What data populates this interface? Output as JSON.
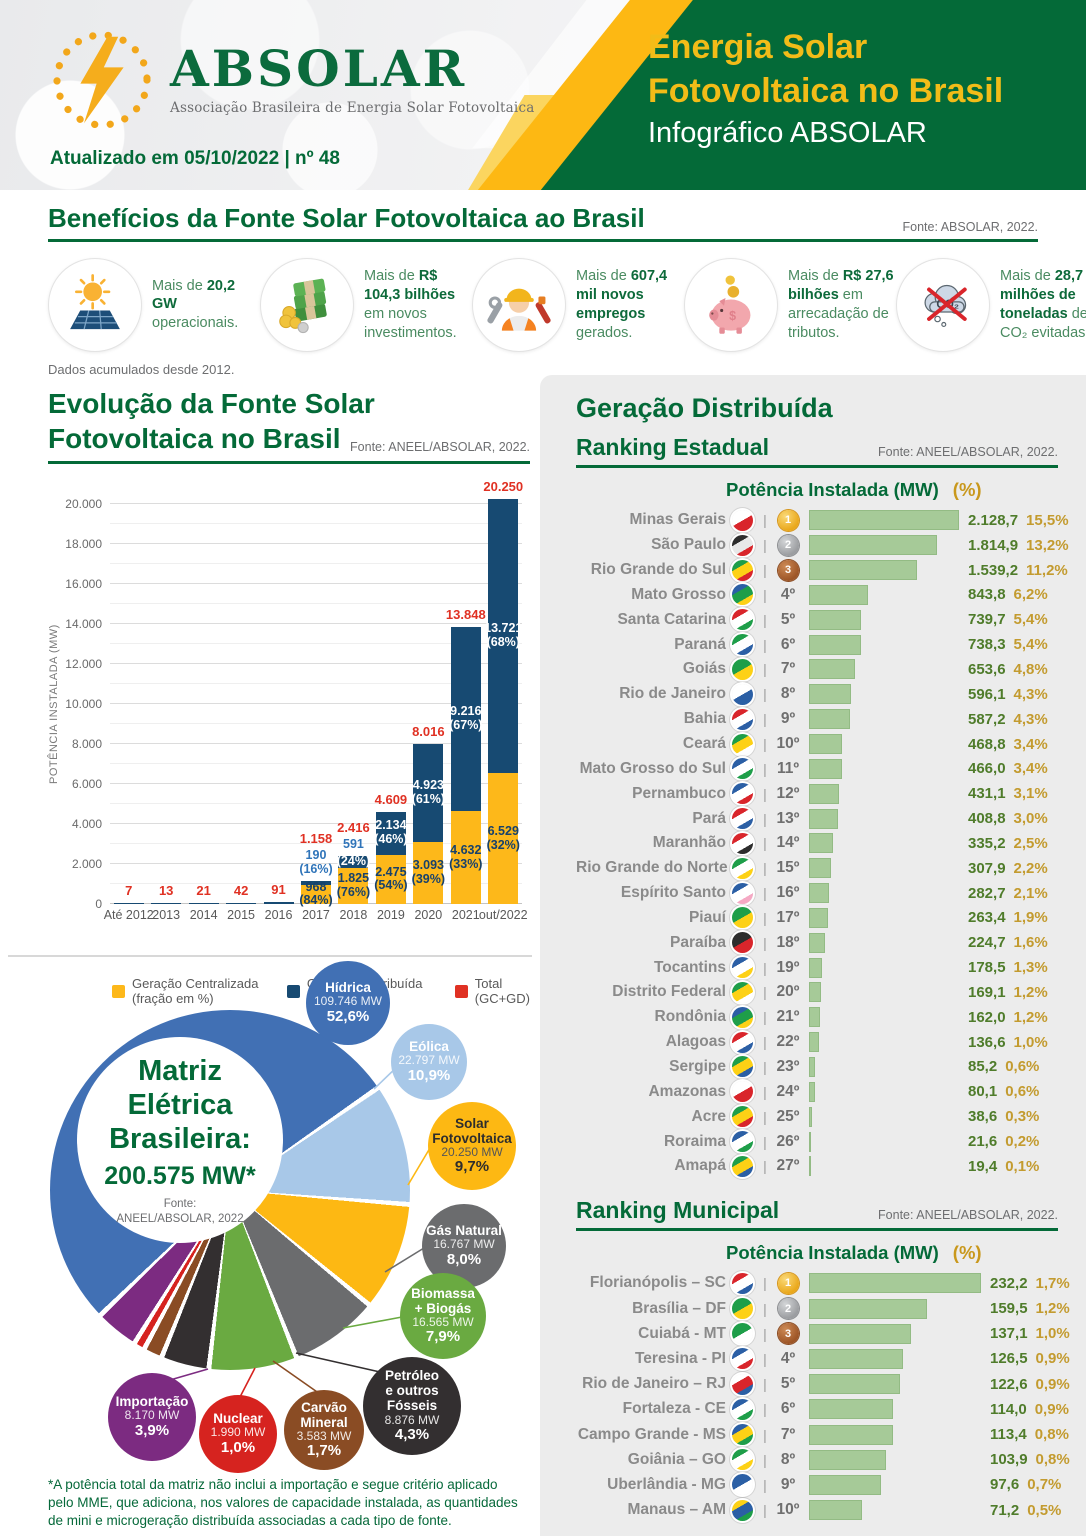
{
  "header": {
    "logo_text": "ABSOLAR",
    "logo_tagline": "Associação Brasileira de Energia Solar Fotovoltaica",
    "updated": "Atualizado em 05/10/2022 | nº 48",
    "title_line1": "Energia Solar",
    "title_line2": "Fotovoltaica no Brasil",
    "subtitle": "Infográfico ABSOLAR",
    "brand_green": "#046a38",
    "brand_yellow": "#fdb813"
  },
  "benefits": {
    "title": "Benefícios da Fonte Solar Fotovoltaica ao Brasil",
    "source": "Fonte: ABSOLAR, 2022.",
    "note": "Dados acumulados desde 2012.",
    "items": [
      {
        "icon": "solar-panel-icon",
        "text": "Mais de **20,2 GW** operacionais."
      },
      {
        "icon": "money-icon",
        "text": "Mais de **R$ 104,3 bilhões** em novos investimentos."
      },
      {
        "icon": "worker-icon",
        "text": "Mais de **607,4 mil novos empregos** gerados."
      },
      {
        "icon": "piggy-bank-icon",
        "text": "Mais de **R$ 27,6 bilhões** em arrecadação de tributos."
      },
      {
        "icon": "co2-icon",
        "text": "Mais de **28,7 milhões de toneladas** de CO₂ evitadas."
      }
    ]
  },
  "chart_data": [
    {
      "id": "evolution",
      "type": "bar",
      "stacked": true,
      "title": "Evolução da Fonte Solar\nFotovoltaica no Brasil",
      "source": "Fonte: ANEEL/ABSOLAR, 2022.",
      "ylabel": "POTÊNCIA INSTALADA (MW)",
      "ylim": [
        0,
        20000
      ],
      "ytick_labels": [
        "0",
        "2.000",
        "4.000",
        "6.000",
        "8.000",
        "10.000",
        "12.000",
        "14.000",
        "16.000",
        "18.000",
        "20.000"
      ],
      "categories": [
        "Até 2012",
        "2013",
        "2014",
        "2015",
        "2016",
        "2017",
        "2018",
        "2019",
        "2020",
        "2021",
        "out/2022"
      ],
      "series": [
        {
          "name": "Geração Centralizada (fração em %)",
          "color": "#fdb81a",
          "values": [
            0,
            0,
            0,
            0,
            0,
            968,
            1825,
            2475,
            3093,
            4632,
            6529
          ]
        },
        {
          "name": "Geração Distribuída (fração em %)",
          "color": "#174a72",
          "values": [
            7,
            13,
            21,
            42,
            91,
            190,
            591,
            2134,
            4923,
            9216,
            13721
          ]
        }
      ],
      "totals": [
        7,
        13,
        21,
        42,
        91,
        1158,
        2416,
        4609,
        8016,
        13848,
        20250
      ],
      "total_series_name": "Total (GC+GD)",
      "total_color": "#e03123",
      "labels": [
        {
          "total": "7"
        },
        {
          "total": "13"
        },
        {
          "total": "21"
        },
        {
          "total": "42"
        },
        {
          "total": "91"
        },
        {
          "total": "1.158",
          "gd_above": "190\n(16%)",
          "gc_in": "968\n(84%)"
        },
        {
          "total": "2.416",
          "gd_above": "591",
          "gd_in": "(24%)",
          "gc_in": "1.825\n(76%)"
        },
        {
          "total": "4.609",
          "gd_in": "2.134\n(46%)",
          "gc_in": "2.475\n(54%)"
        },
        {
          "total": "8.016",
          "gd_in": "4.923\n(61%)",
          "gc_in": "3.093\n(39%)"
        },
        {
          "total": "13.848",
          "gd_in": "9.216\n(67%)",
          "gc_in": "4.632\n(33%)"
        },
        {
          "total": "20.250",
          "gd_in": "13.721\n(68%)",
          "gc_in": "6.529\n(32%)"
        }
      ]
    },
    {
      "id": "ranking-estadual",
      "type": "bar",
      "title": "Ranking Estadual",
      "source": "Fonte: ANEEL/ABSOLAR, 2022.",
      "rows": [
        {
          "name": "Minas Gerais",
          "rank": 1,
          "value": 2128.7,
          "value_label": "2.128,7",
          "pct": "15,5%",
          "flag": [
            "#ffffff",
            "#d9252b"
          ]
        },
        {
          "name": "São Paulo",
          "rank": 2,
          "value": 1814.9,
          "value_label": "1.814,9",
          "pct": "13,2%",
          "flag": [
            "#2d2d2d",
            "#e8e8e8",
            "#d9252b"
          ]
        },
        {
          "name": "Rio Grande do Sul",
          "rank": 3,
          "value": 1539.2,
          "value_label": "1.539,2",
          "pct": "11,2%",
          "flag": [
            "#1e9e49",
            "#fdd116",
            "#d9252b"
          ]
        },
        {
          "name": "Mato Grosso",
          "rank": 4,
          "value": 843.8,
          "value_label": "843,8",
          "pct": "6,2%",
          "flag": [
            "#2b5fa5",
            "#1e9e49",
            "#fdd116"
          ]
        },
        {
          "name": "Santa Catarina",
          "rank": 5,
          "value": 739.7,
          "value_label": "739,7",
          "pct": "5,4%",
          "flag": [
            "#d9252b",
            "#ffffff",
            "#1e9e49"
          ]
        },
        {
          "name": "Paraná",
          "rank": 6,
          "value": 738.3,
          "value_label": "738,3",
          "pct": "5,4%",
          "flag": [
            "#1e9e49",
            "#ffffff",
            "#2b5fa5"
          ]
        },
        {
          "name": "Goiás",
          "rank": 7,
          "value": 653.6,
          "value_label": "653,6",
          "pct": "4,8%",
          "flag": [
            "#1e9e49",
            "#fdd116"
          ]
        },
        {
          "name": "Rio de Janeiro",
          "rank": 8,
          "value": 596.1,
          "value_label": "596,1",
          "pct": "4,3%",
          "flag": [
            "#ffffff",
            "#2b5fa5"
          ]
        },
        {
          "name": "Bahia",
          "rank": 9,
          "value": 587.2,
          "value_label": "587,2",
          "pct": "4,3%",
          "flag": [
            "#d9252b",
            "#ffffff",
            "#2b5fa5"
          ]
        },
        {
          "name": "Ceará",
          "rank": 10,
          "value": 468.8,
          "value_label": "468,8",
          "pct": "3,4%",
          "flag": [
            "#1e9e49",
            "#fdd116",
            "#ffffff"
          ]
        },
        {
          "name": "Mato Grosso do Sul",
          "rank": 11,
          "value": 466.0,
          "value_label": "466,0",
          "pct": "3,4%",
          "flag": [
            "#2b5fa5",
            "#ffffff",
            "#1e9e49"
          ]
        },
        {
          "name": "Pernambuco",
          "rank": 12,
          "value": 431.1,
          "value_label": "431,1",
          "pct": "3,1%",
          "flag": [
            "#2b5fa5",
            "#ffffff",
            "#d9252b"
          ]
        },
        {
          "name": "Pará",
          "rank": 13,
          "value": 408.8,
          "value_label": "408,8",
          "pct": "3,0%",
          "flag": [
            "#d9252b",
            "#ffffff",
            "#2b5fa5"
          ]
        },
        {
          "name": "Maranhão",
          "rank": 14,
          "value": 335.2,
          "value_label": "335,2",
          "pct": "2,5%",
          "flag": [
            "#d9252b",
            "#ffffff",
            "#2d2d2d"
          ]
        },
        {
          "name": "Rio Grande do Norte",
          "rank": 15,
          "value": 307.9,
          "value_label": "307,9",
          "pct": "2,2%",
          "flag": [
            "#1e9e49",
            "#ffffff",
            "#fdd116"
          ]
        },
        {
          "name": "Espírito Santo",
          "rank": 16,
          "value": 282.7,
          "value_label": "282,7",
          "pct": "2,1%",
          "flag": [
            "#2b5fa5",
            "#ffffff",
            "#f5a9c4"
          ]
        },
        {
          "name": "Piauí",
          "rank": 17,
          "value": 263.4,
          "value_label": "263,4",
          "pct": "1,9%",
          "flag": [
            "#1e9e49",
            "#fdd116"
          ]
        },
        {
          "name": "Paraíba",
          "rank": 18,
          "value": 224.7,
          "value_label": "224,7",
          "pct": "1,6%",
          "flag": [
            "#2d2d2d",
            "#d9252b"
          ]
        },
        {
          "name": "Tocantins",
          "rank": 19,
          "value": 178.5,
          "value_label": "178,5",
          "pct": "1,3%",
          "flag": [
            "#2b5fa5",
            "#ffffff",
            "#fdd116"
          ]
        },
        {
          "name": "Distrito Federal",
          "rank": 20,
          "value": 169.1,
          "value_label": "169,1",
          "pct": "1,2%",
          "flag": [
            "#1e9e49",
            "#fdd116",
            "#ffffff"
          ]
        },
        {
          "name": "Rondônia",
          "rank": 21,
          "value": 162.0,
          "value_label": "162,0",
          "pct": "1,2%",
          "flag": [
            "#2b5fa5",
            "#1e9e49",
            "#fdd116"
          ]
        },
        {
          "name": "Alagoas",
          "rank": 22,
          "value": 136.6,
          "value_label": "136,6",
          "pct": "1,0%",
          "flag": [
            "#d9252b",
            "#ffffff",
            "#2b5fa5"
          ]
        },
        {
          "name": "Sergipe",
          "rank": 23,
          "value": 85.2,
          "value_label": "85,2",
          "pct": "0,6%",
          "flag": [
            "#1e9e49",
            "#fdd116",
            "#2b5fa5"
          ]
        },
        {
          "name": "Amazonas",
          "rank": 24,
          "value": 80.1,
          "value_label": "80,1",
          "pct": "0,6%",
          "flag": [
            "#ffffff",
            "#d9252b"
          ]
        },
        {
          "name": "Acre",
          "rank": 25,
          "value": 38.6,
          "value_label": "38,6",
          "pct": "0,3%",
          "flag": [
            "#1e9e49",
            "#fdd116",
            "#d9252b"
          ]
        },
        {
          "name": "Roraima",
          "rank": 26,
          "value": 21.6,
          "value_label": "21,6",
          "pct": "0,2%",
          "flag": [
            "#2b5fa5",
            "#ffffff",
            "#1e9e49"
          ]
        },
        {
          "name": "Amapá",
          "rank": 27,
          "value": 19.4,
          "value_label": "19,4",
          "pct": "0,1%",
          "flag": [
            "#1e9e49",
            "#fdd116",
            "#2b5fa5"
          ]
        }
      ]
    },
    {
      "id": "ranking-municipal",
      "type": "bar",
      "title": "Ranking Municipal",
      "source": "Fonte: ANEEL/ABSOLAR, 2022.",
      "rows": [
        {
          "name": "Florianópolis – SC",
          "rank": 1,
          "value": 232.2,
          "value_label": "232,2",
          "pct": "1,7%",
          "flag": [
            "#d9252b",
            "#ffffff",
            "#2b5fa5"
          ]
        },
        {
          "name": "Brasília – DF",
          "rank": 2,
          "value": 159.5,
          "value_label": "159,5",
          "pct": "1,2%",
          "flag": [
            "#1e9e49",
            "#fdd116"
          ]
        },
        {
          "name": "Cuiabá - MT",
          "rank": 3,
          "value": 137.1,
          "value_label": "137,1",
          "pct": "1,0%",
          "flag": [
            "#1e9e49",
            "#ffffff"
          ]
        },
        {
          "name": "Teresina - PI",
          "rank": 4,
          "value": 126.5,
          "value_label": "126,5",
          "pct": "0,9%",
          "flag": [
            "#2b5fa5",
            "#ffffff",
            "#d9252b"
          ]
        },
        {
          "name": "Rio de Janeiro – RJ",
          "rank": 5,
          "value": 122.6,
          "value_label": "122,6",
          "pct": "0,9%",
          "flag": [
            "#ffffff",
            "#d9252b",
            "#2b5fa5"
          ]
        },
        {
          "name": "Fortaleza - CE",
          "rank": 6,
          "value": 114.0,
          "value_label": "114,0",
          "pct": "0,9%",
          "flag": [
            "#2b5fa5",
            "#ffffff",
            "#1e9e49"
          ]
        },
        {
          "name": "Campo Grande - MS",
          "rank": 7,
          "value": 113.4,
          "value_label": "113,4",
          "pct": "0,8%",
          "flag": [
            "#2b5fa5",
            "#fdd116",
            "#1e9e49"
          ]
        },
        {
          "name": "Goiânia – GO",
          "rank": 8,
          "value": 103.9,
          "value_label": "103,9",
          "pct": "0,8%",
          "flag": [
            "#1e9e49",
            "#ffffff",
            "#fdd116"
          ]
        },
        {
          "name": "Uberlândia - MG",
          "rank": 9,
          "value": 97.6,
          "value_label": "97,6",
          "pct": "0,7%",
          "flag": [
            "#2b5fa5",
            "#ffffff"
          ]
        },
        {
          "name": "Manaus – AM",
          "rank": 10,
          "value": 71.2,
          "value_label": "71,2",
          "pct": "0,5%",
          "flag": [
            "#fdd116",
            "#2b5fa5",
            "#1e9e49"
          ]
        }
      ]
    },
    {
      "id": "matriz-eletrica",
      "type": "pie",
      "center_title": "Matriz\nElétrica\nBrasileira:",
      "center_total": "200.575 MW*",
      "center_source": "Fonte:\nANEEL/ABSOLAR, 2022",
      "slices": [
        {
          "name": "Hídrica",
          "mw": "109.746 MW",
          "pct": "52,6%",
          "pct_num": 52.6,
          "color": "#4170b4",
          "text": "light"
        },
        {
          "name": "Eólica",
          "mw": "22.797 MW",
          "pct": "10,9%",
          "pct_num": 10.9,
          "color": "#a8c8e8",
          "text": "light"
        },
        {
          "name": "Solar\nFotovoltaica",
          "mw": "20.250 MW",
          "pct": "9,7%",
          "pct_num": 9.7,
          "color": "#fdb813",
          "text": "dark"
        },
        {
          "name": "Gás Natural",
          "mw": "16.767 MW",
          "pct": "8,0%",
          "pct_num": 8.0,
          "color": "#6b6c6e",
          "text": "light"
        },
        {
          "name": "Biomassa\n+ Biogás",
          "mw": "16.565 MW",
          "pct": "7,9%",
          "pct_num": 7.9,
          "color": "#6aaa41",
          "text": "light"
        },
        {
          "name": "Petróleo\ne outros\nFósseis",
          "mw": "8.876 MW",
          "pct": "4,3%",
          "pct_num": 4.3,
          "color": "#332f30",
          "text": "light"
        },
        {
          "name": "Carvão\nMineral",
          "mw": "3.583 MW",
          "pct": "1,7%",
          "pct_num": 1.7,
          "color": "#8a4c24",
          "text": "light"
        },
        {
          "name": "Nuclear",
          "mw": "1.990 MW",
          "pct": "1,0%",
          "pct_num": 1.0,
          "color": "#d6231f",
          "text": "light"
        },
        {
          "name": "Importação",
          "mw": "8.170 MW",
          "pct": "3,9%",
          "pct_num": 3.9,
          "color": "#7c2b81",
          "text": "light"
        }
      ]
    }
  ],
  "gd_section": {
    "title": "Geração Distribuída",
    "col_mw": "Potência Instalada (MW)",
    "col_pct": "(%)"
  },
  "matrix_footnote": "*A potência total da matriz não inclui a importação e segue critério aplicado pelo MME, que adiciona, nos valores de capacidade instalada, as quantidades de mini e microgeração distribuída associadas a cada tipo de fonte."
}
